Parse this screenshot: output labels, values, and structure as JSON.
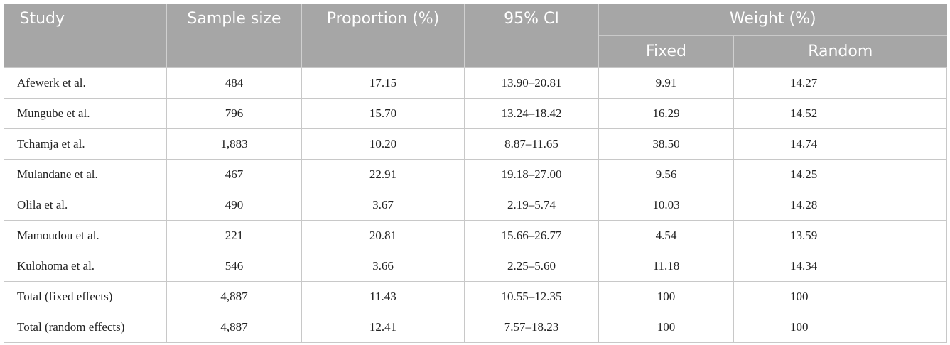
{
  "table": {
    "headers": {
      "study": "Study",
      "sample_size": "Sample size",
      "proportion": "Proportion (%)",
      "ci": "95% CI",
      "weight": "Weight (%)",
      "fixed": "Fixed",
      "random": "Random"
    },
    "rows": [
      {
        "study": "Afewerk et al.",
        "sample": "484",
        "prop": "17.15",
        "ci": "13.90–20.81",
        "fixed": "9.91",
        "random": "14.27"
      },
      {
        "study": "Mungube et al.",
        "sample": "796",
        "prop": "15.70",
        "ci": "13.24–18.42",
        "fixed": "16.29",
        "random": "14.52"
      },
      {
        "study": "Tchamja et al.",
        "sample": "1,883",
        "prop": "10.20",
        "ci": "8.87–11.65",
        "fixed": "38.50",
        "random": "14.74"
      },
      {
        "study": "Mulandane et al.",
        "sample": "467",
        "prop": "22.91",
        "ci": "19.18–27.00",
        "fixed": "9.56",
        "random": "14.25"
      },
      {
        "study": "Olila et al.",
        "sample": "490",
        "prop": "3.67",
        "ci": "2.19–5.74",
        "fixed": "10.03",
        "random": "14.28"
      },
      {
        "study": "Mamoudou et al.",
        "sample": "221",
        "prop": "20.81",
        "ci": "15.66–26.77",
        "fixed": "4.54",
        "random": "13.59"
      },
      {
        "study": "Kulohoma et al.",
        "sample": "546",
        "prop": "3.66",
        "ci": "2.25–5.60",
        "fixed": "11.18",
        "random": "14.34"
      },
      {
        "study": "Total (fixed effects)",
        "sample": "4,887",
        "prop": "11.43",
        "ci": "10.55–12.35",
        "fixed": "100",
        "random": "100"
      },
      {
        "study": "Total (random effects)",
        "sample": "4,887",
        "prop": "12.41",
        "ci": "7.57–18.23",
        "fixed": "100",
        "random": "100"
      }
    ]
  }
}
